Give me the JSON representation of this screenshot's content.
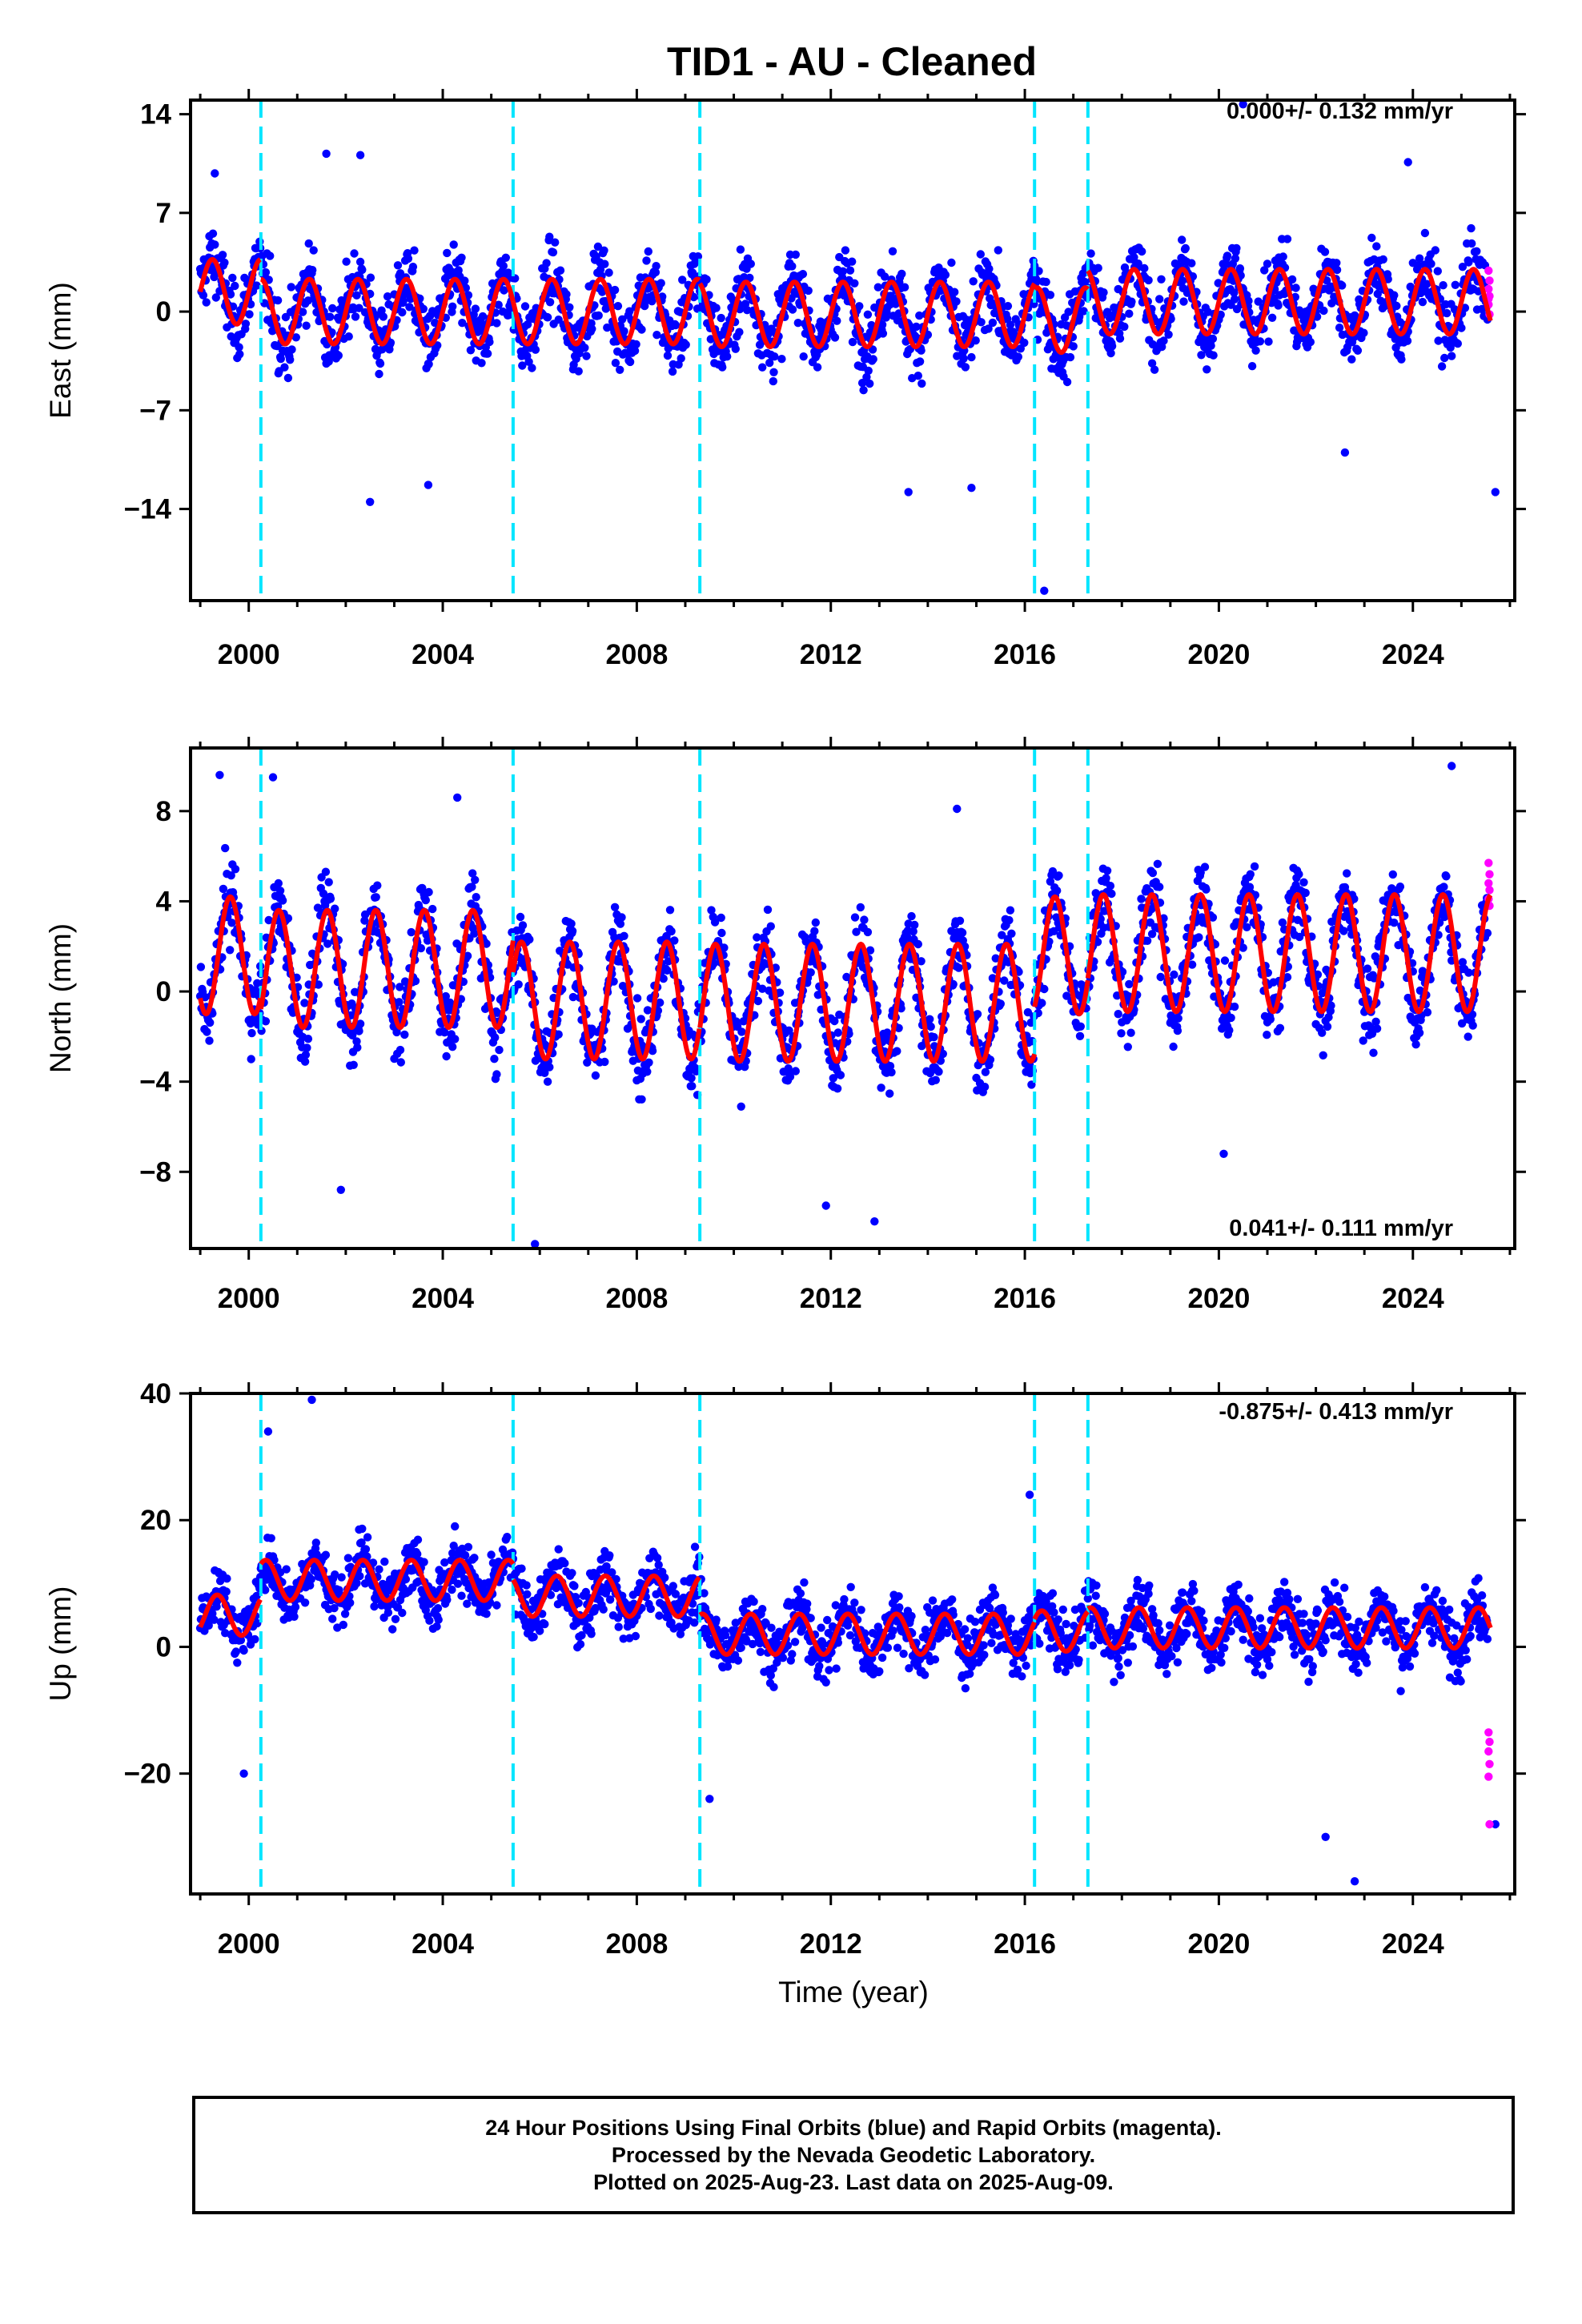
{
  "title": "TID1  - AU - Cleaned",
  "x_axis_label": "Time (year)",
  "x_ticks": [
    "2000",
    "2004",
    "2008",
    "2012",
    "2016",
    "2020",
    "2024"
  ],
  "colors": {
    "final_points": "#0000ff",
    "rapid_points": "#ff00ff",
    "model_fit": "#ff0000",
    "event_lines": "#00e5ff"
  },
  "footer": {
    "line1": "24 Hour Positions Using Final Orbits (blue) and Rapid Orbits (magenta).",
    "line2": "Processed by the Nevada Geodetic Laboratory.",
    "line3": "Plotted on 2025-Aug-23. Last data on 2025-Aug-09."
  },
  "chart_data": [
    {
      "type": "scatter",
      "ylabel": "East (mm)",
      "velocity_text": "0.000+/- 0.132 mm/yr",
      "xlim": [
        1998.8,
        2026.1
      ],
      "ylim": [
        -20.5,
        15.0
      ],
      "yticks": [
        14,
        7,
        0,
        -7,
        -14
      ],
      "event_lines": [
        2000.25,
        2005.45,
        2009.3,
        2016.2,
        2017.3
      ],
      "data_range": [
        1999.0,
        2025.6
      ],
      "seasonal": {
        "amplitude": 2.3,
        "phase_year": 0.0,
        "noise": 2.3
      },
      "fit_segments": [
        {
          "start": 1999.0,
          "end": 2000.25,
          "offset": 1.4
        },
        {
          "start": 2000.25,
          "end": 2005.45,
          "offset": 0.0
        },
        {
          "start": 2005.45,
          "end": 2009.3,
          "offset": 0.0
        },
        {
          "start": 2009.3,
          "end": 2016.2,
          "offset": -0.2
        },
        {
          "start": 2016.2,
          "end": 2017.3,
          "offset": -0.6
        },
        {
          "start": 2017.3,
          "end": 2025.6,
          "offset": 0.7
        }
      ],
      "outliers": [
        [
          1999.3,
          9.8
        ],
        [
          2001.6,
          11.2
        ],
        [
          2002.3,
          11.1
        ],
        [
          2020.5,
          14.7
        ],
        [
          2023.9,
          10.6
        ],
        [
          2016.4,
          -19.8
        ],
        [
          2002.5,
          -13.5
        ],
        [
          2003.7,
          -12.3
        ],
        [
          2025.7,
          -12.8
        ],
        [
          2013.6,
          -12.8
        ],
        [
          2014.9,
          -12.5
        ],
        [
          2022.6,
          -10.0
        ]
      ],
      "rapid_values": [
        2.9,
        2.2,
        1.6,
        1.1,
        0.5,
        -0.2,
        0.9
      ]
    },
    {
      "type": "scatter",
      "ylabel": "North (mm)",
      "velocity_text": "0.041+/- 0.111 mm/yr",
      "xlim": [
        1998.8,
        2026.1
      ],
      "ylim": [
        -11.4,
        10.8
      ],
      "yticks": [
        8,
        4,
        0,
        -4,
        -8
      ],
      "event_lines": [
        2000.25,
        2005.45,
        2009.3,
        2016.2,
        2017.3
      ],
      "data_range": [
        1999.0,
        2025.6
      ],
      "seasonal": {
        "amplitude": 2.6,
        "phase_year": 0.37,
        "noise": 1.6
      },
      "fit_segments": [
        {
          "start": 1999.0,
          "end": 2000.25,
          "offset": 1.6
        },
        {
          "start": 2000.25,
          "end": 2005.45,
          "offset": 1.0
        },
        {
          "start": 2005.45,
          "end": 2009.3,
          "offset": -0.4
        },
        {
          "start": 2009.3,
          "end": 2016.2,
          "offset": -0.5
        },
        {
          "start": 2016.2,
          "end": 2017.3,
          "offset": 1.6
        },
        {
          "start": 2017.3,
          "end": 2025.6,
          "offset": 1.7
        }
      ],
      "outliers": [
        [
          1999.4,
          9.6
        ],
        [
          2000.5,
          9.5
        ],
        [
          2024.8,
          10.0
        ],
        [
          2005.9,
          -11.2
        ],
        [
          2011.9,
          -9.5
        ],
        [
          2012.9,
          -10.2
        ],
        [
          2001.9,
          -8.8
        ],
        [
          2020.1,
          -7.2
        ],
        [
          2004.3,
          8.6
        ],
        [
          2014.6,
          8.1
        ]
      ],
      "rapid_values": [
        5.7,
        5.2,
        4.8,
        4.5,
        4.1,
        3.8
      ]
    },
    {
      "type": "scatter",
      "ylabel": "Up (mm)",
      "velocity_text": "-0.875+/- 0.413 mm/yr",
      "xlim": [
        1998.8,
        2026.1
      ],
      "ylim": [
        -39.0,
        40.0
      ],
      "yticks": [
        40,
        20,
        0,
        -20
      ],
      "event_lines": [
        2000.25,
        2005.45,
        2009.3,
        2016.2,
        2017.3
      ],
      "data_range": [
        1999.0,
        2025.6
      ],
      "seasonal": {
        "amplitude": 3.2,
        "phase_year": 0.1,
        "noise": 4.4
      },
      "fit_segments": [
        {
          "start": 1999.0,
          "end": 2000.25,
          "offset": 5.0
        },
        {
          "start": 2000.25,
          "end": 2005.45,
          "offset": 10.5
        },
        {
          "start": 2005.45,
          "end": 2009.3,
          "offset": 8.0
        },
        {
          "start": 2009.3,
          "end": 2016.2,
          "offset": 2.0
        },
        {
          "start": 2016.2,
          "end": 2017.3,
          "offset": 2.5
        },
        {
          "start": 2017.3,
          "end": 2025.6,
          "offset": 3.0
        }
      ],
      "outliers": [
        [
          2001.3,
          39.0
        ],
        [
          2000.4,
          34.0
        ],
        [
          2016.1,
          24.0
        ],
        [
          2009.5,
          -24.0
        ],
        [
          2022.8,
          -37.0
        ],
        [
          2025.7,
          -28.0
        ],
        [
          1999.9,
          -20.0
        ],
        [
          2022.2,
          -30.0
        ]
      ],
      "rapid_values": [
        -13.5,
        -15.0,
        -16.5,
        -18.5,
        -20.5,
        -28.0
      ]
    }
  ]
}
